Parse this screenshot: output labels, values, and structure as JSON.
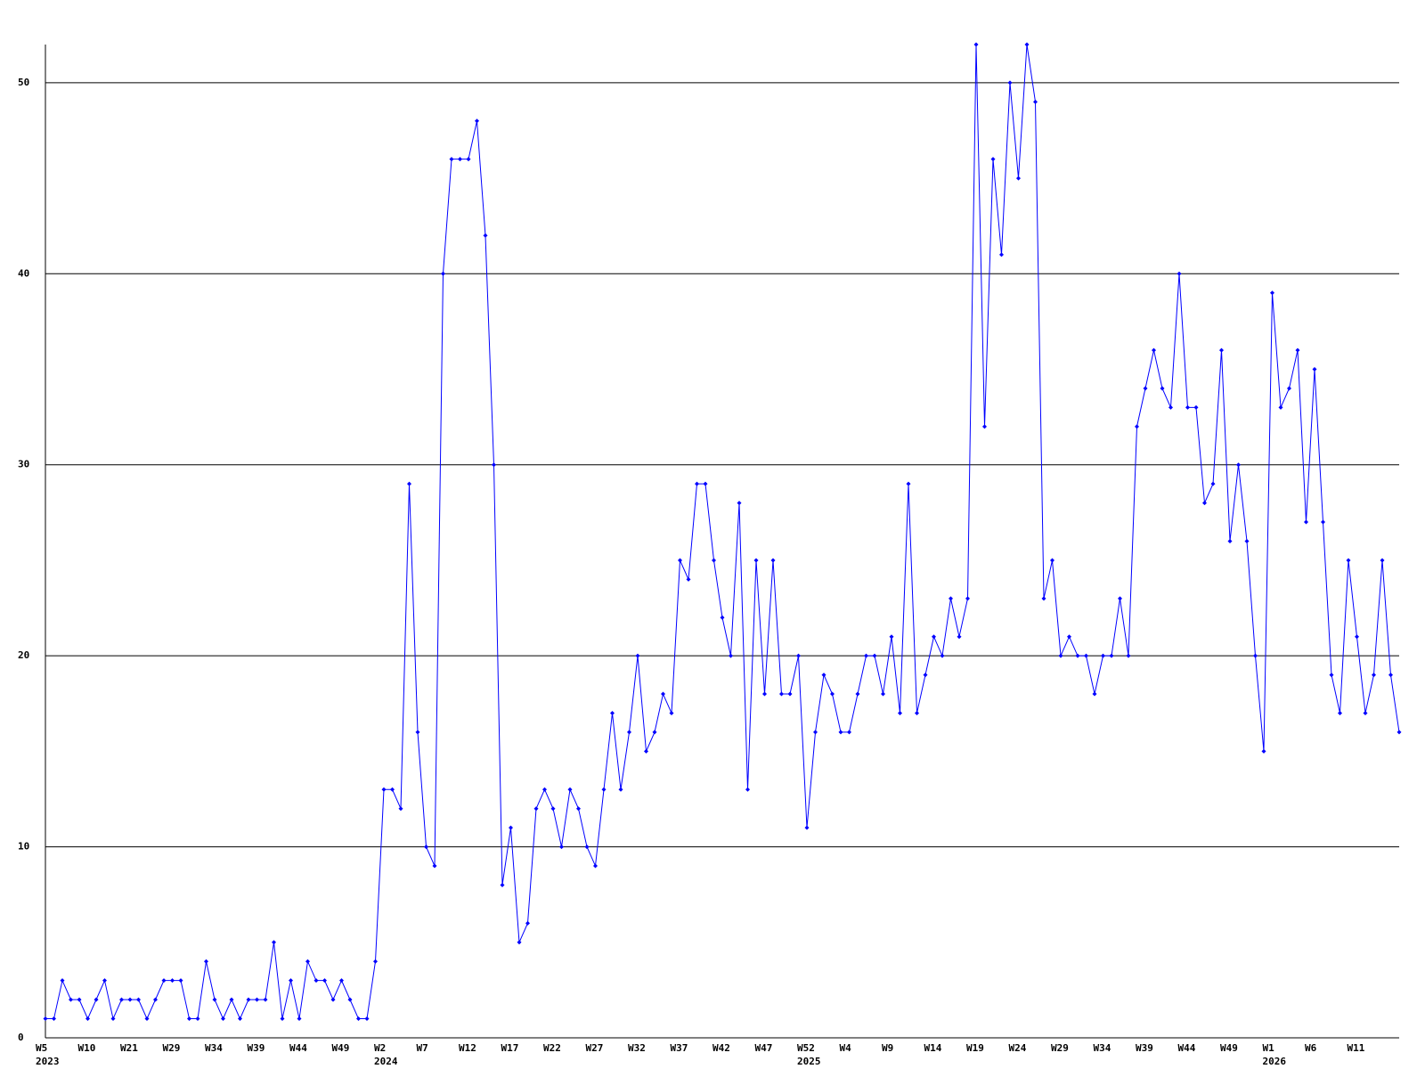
{
  "chart_data": {
    "type": "line",
    "color": "#0000ff",
    "grid": true,
    "ylim": [
      0,
      52
    ],
    "yticks": [
      0,
      10,
      20,
      30,
      40,
      50
    ],
    "categories": [
      "W5",
      null,
      null,
      null,
      null,
      "W10",
      null,
      null,
      null,
      null,
      "W21",
      null,
      null,
      null,
      null,
      "W29",
      null,
      null,
      null,
      null,
      "W34",
      null,
      null,
      null,
      null,
      "W39",
      null,
      null,
      null,
      null,
      "W44",
      null,
      null,
      null,
      null,
      "W49",
      null,
      null,
      null,
      null,
      "W2",
      null,
      null,
      null,
      null,
      "W7",
      null,
      null,
      null,
      null,
      "W12",
      null,
      null,
      null,
      null,
      "W17",
      null,
      null,
      null,
      null,
      "W22",
      null,
      null,
      null,
      null,
      "W27",
      null,
      null,
      null,
      null,
      "W32",
      null,
      null,
      null,
      null,
      "W37",
      null,
      null,
      null,
      null,
      "W42",
      null,
      null,
      null,
      null,
      "W47",
      null,
      null,
      null,
      null,
      "W52",
      null,
      null,
      null,
      null,
      "W4",
      null,
      null,
      null,
      null,
      "W9",
      null,
      null,
      null,
      null,
      "W14",
      null,
      null,
      null,
      null,
      "W19",
      null,
      null,
      null,
      null,
      "W24",
      null,
      null,
      null,
      null,
      "W29",
      null,
      null,
      null,
      null,
      "W34",
      null,
      null,
      null,
      null,
      "W39",
      null,
      null,
      null,
      null,
      "W44",
      null,
      null,
      null,
      null,
      "W49",
      null,
      null,
      null,
      null,
      "W1",
      null,
      null,
      null,
      null,
      "W6",
      null,
      null,
      null,
      null,
      "W11",
      null,
      null,
      null,
      null,
      null
    ],
    "year_labels": [
      "2023",
      null,
      null,
      null,
      null,
      null,
      null,
      null,
      null,
      null,
      null,
      null,
      null,
      null,
      null,
      null,
      null,
      null,
      null,
      null,
      null,
      null,
      null,
      null,
      null,
      null,
      null,
      null,
      null,
      null,
      null,
      null,
      null,
      null,
      null,
      null,
      null,
      null,
      null,
      null,
      "2024",
      null,
      null,
      null,
      null,
      null,
      null,
      null,
      null,
      null,
      null,
      null,
      null,
      null,
      null,
      null,
      null,
      null,
      null,
      null,
      null,
      null,
      null,
      null,
      null,
      null,
      null,
      null,
      null,
      null,
      null,
      null,
      null,
      null,
      null,
      null,
      null,
      null,
      null,
      null,
      null,
      null,
      null,
      null,
      null,
      null,
      null,
      null,
      null,
      null,
      "2025",
      null,
      null,
      null,
      null,
      null,
      null,
      null,
      null,
      null,
      null,
      null,
      null,
      null,
      null,
      null,
      null,
      null,
      null,
      null,
      null,
      null,
      null,
      null,
      null,
      null,
      null,
      null,
      null,
      null,
      null,
      null,
      null,
      null,
      null,
      null,
      null,
      null,
      null,
      null,
      null,
      null,
      null,
      null,
      null,
      null,
      null,
      null,
      null,
      null,
      null,
      null,
      null,
      null,
      null,
      "2026",
      null,
      null,
      null,
      null,
      null,
      null,
      null,
      null,
      null,
      null,
      null,
      null,
      null,
      null,
      null
    ],
    "values": [
      1,
      1,
      3,
      2,
      2,
      1,
      2,
      3,
      1,
      2,
      2,
      2,
      1,
      2,
      3,
      3,
      3,
      1,
      1,
      4,
      2,
      1,
      2,
      1,
      2,
      2,
      2,
      5,
      1,
      3,
      1,
      4,
      3,
      3,
      2,
      3,
      2,
      1,
      1,
      4,
      13,
      13,
      12,
      29,
      16,
      10,
      9,
      40,
      46,
      46,
      46,
      48,
      42,
      30,
      8,
      11,
      5,
      6,
      12,
      13,
      12,
      10,
      13,
      12,
      10,
      9,
      13,
      17,
      13,
      16,
      20,
      15,
      16,
      18,
      17,
      25,
      24,
      29,
      29,
      25,
      22,
      20,
      28,
      13,
      25,
      18,
      25,
      18,
      18,
      20,
      11,
      16,
      19,
      18,
      16,
      16,
      18,
      20,
      20,
      18,
      21,
      17,
      29,
      17,
      19,
      21,
      20,
      23,
      21,
      23,
      52,
      32,
      46,
      41,
      50,
      45,
      52,
      49,
      23,
      25,
      20,
      21,
      20,
      20,
      18,
      20,
      20,
      23,
      20,
      32,
      34,
      36,
      34,
      33,
      40,
      33,
      33,
      28,
      29,
      36,
      26,
      30,
      26,
      20,
      15,
      39,
      33,
      34,
      36,
      27,
      35,
      27,
      19,
      17,
      25,
      21,
      17,
      19,
      25,
      19,
      16
    ]
  }
}
